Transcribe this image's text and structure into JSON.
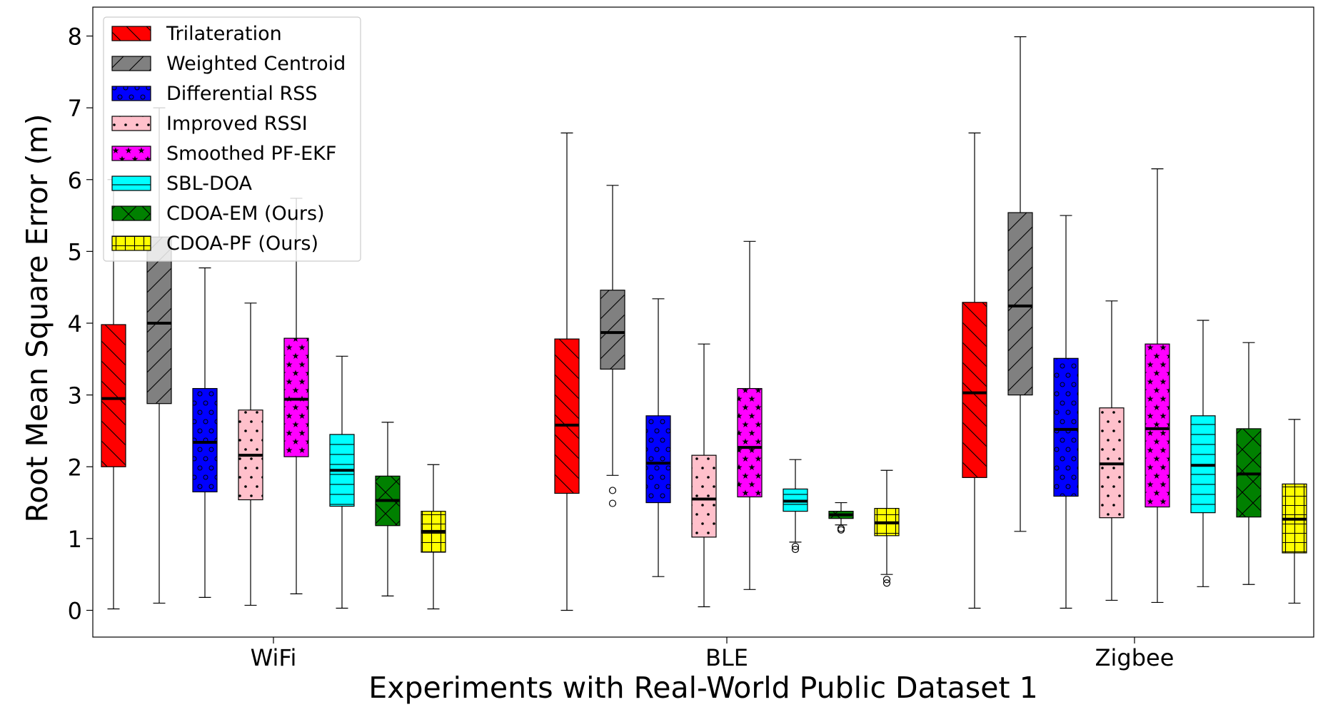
{
  "chart_data": {
    "type": "boxplot",
    "title": "",
    "xlabel": "Experiments with Real-World Public Dataset 1",
    "ylabel": "Root Mean Square Error (m)",
    "ylim": [
      -0.4,
      8.4
    ],
    "yticks": [
      0,
      1,
      2,
      3,
      4,
      5,
      6,
      7,
      8
    ],
    "grid": false,
    "legend_position": "top-left",
    "categories": [
      "WiFi",
      "BLE",
      "Zigbee"
    ],
    "series": [
      {
        "name": "Trilateration",
        "color": "#ff0000",
        "pattern": "backslash",
        "boxes": [
          {
            "whislo": 0.02,
            "q1": 2.0,
            "med": 2.95,
            "q3": 3.98,
            "whishi": 6.0,
            "fliers": []
          },
          {
            "whislo": 0.0,
            "q1": 1.63,
            "med": 2.58,
            "q3": 3.78,
            "whishi": 6.65,
            "fliers": []
          },
          {
            "whislo": 0.03,
            "q1": 1.85,
            "med": 3.03,
            "q3": 4.29,
            "whishi": 6.65,
            "fliers": []
          }
        ]
      },
      {
        "name": "Weighted Centroid",
        "color": "#808080",
        "pattern": "slash",
        "boxes": [
          {
            "whislo": 0.1,
            "q1": 2.88,
            "med": 4.0,
            "q3": 5.2,
            "whishi": 7.0,
            "fliers": []
          },
          {
            "whislo": 1.88,
            "q1": 3.36,
            "med": 3.87,
            "q3": 4.46,
            "whishi": 5.92,
            "fliers": [
              1.67,
              1.49
            ]
          },
          {
            "whislo": 1.1,
            "q1": 3.0,
            "med": 4.24,
            "q3": 5.54,
            "whishi": 7.99,
            "fliers": []
          }
        ]
      },
      {
        "name": "Differential RSS",
        "color": "#0000ff",
        "pattern": "circles",
        "boxes": [
          {
            "whislo": 0.18,
            "q1": 1.65,
            "med": 2.34,
            "q3": 3.09,
            "whishi": 4.77,
            "fliers": []
          },
          {
            "whislo": 0.47,
            "q1": 1.5,
            "med": 2.05,
            "q3": 2.71,
            "whishi": 4.34,
            "fliers": []
          },
          {
            "whislo": 0.03,
            "q1": 1.59,
            "med": 2.52,
            "q3": 3.51,
            "whishi": 5.5,
            "fliers": []
          }
        ]
      },
      {
        "name": "Improved RSSI",
        "color": "#ffc0cb",
        "pattern": "dots",
        "boxes": [
          {
            "whislo": 0.07,
            "q1": 1.54,
            "med": 2.16,
            "q3": 2.79,
            "whishi": 4.28,
            "fliers": []
          },
          {
            "whislo": 0.05,
            "q1": 1.02,
            "med": 1.55,
            "q3": 2.16,
            "whishi": 3.71,
            "fliers": []
          },
          {
            "whislo": 0.14,
            "q1": 1.29,
            "med": 2.04,
            "q3": 2.82,
            "whishi": 4.31,
            "fliers": []
          }
        ]
      },
      {
        "name": "Smoothed PF-EKF",
        "color": "#ff00ff",
        "pattern": "stars",
        "boxes": [
          {
            "whislo": 0.23,
            "q1": 2.14,
            "med": 2.94,
            "q3": 3.79,
            "whishi": 5.74,
            "fliers": []
          },
          {
            "whislo": 0.29,
            "q1": 1.58,
            "med": 2.27,
            "q3": 3.09,
            "whishi": 5.14,
            "fliers": []
          },
          {
            "whislo": 0.11,
            "q1": 1.44,
            "med": 2.53,
            "q3": 3.71,
            "whishi": 6.15,
            "fliers": []
          }
        ]
      },
      {
        "name": "SBL-DOA",
        "color": "#00ffff",
        "pattern": "hlines",
        "boxes": [
          {
            "whislo": 0.03,
            "q1": 1.45,
            "med": 1.95,
            "q3": 2.45,
            "whishi": 3.54,
            "fliers": []
          },
          {
            "whislo": 0.95,
            "q1": 1.38,
            "med": 1.52,
            "q3": 1.69,
            "whishi": 2.1,
            "fliers": [
              0.89,
              0.85
            ]
          },
          {
            "whislo": 0.33,
            "q1": 1.36,
            "med": 2.02,
            "q3": 2.71,
            "whishi": 4.04,
            "fliers": []
          }
        ]
      },
      {
        "name": "CDOA-EM (Ours)",
        "color": "#008000",
        "pattern": "crossdiag",
        "boxes": [
          {
            "whislo": 0.2,
            "q1": 1.18,
            "med": 1.53,
            "q3": 1.87,
            "whishi": 2.62,
            "fliers": []
          },
          {
            "whislo": 1.19,
            "q1": 1.28,
            "med": 1.33,
            "q3": 1.38,
            "whishi": 1.5,
            "fliers": [
              1.14,
              1.12
            ]
          },
          {
            "whislo": 0.36,
            "q1": 1.3,
            "med": 1.9,
            "q3": 2.53,
            "whishi": 3.73,
            "fliers": []
          }
        ]
      },
      {
        "name": "CDOA-PF (Ours)",
        "color": "#ffff00",
        "pattern": "grid",
        "boxes": [
          {
            "whislo": 0.02,
            "q1": 0.81,
            "med": 1.1,
            "q3": 1.38,
            "whishi": 2.03,
            "fliers": []
          },
          {
            "whislo": 0.5,
            "q1": 1.04,
            "med": 1.22,
            "q3": 1.42,
            "whishi": 1.95,
            "fliers": [
              0.43,
              0.38
            ]
          },
          {
            "whislo": 0.1,
            "q1": 0.8,
            "med": 1.27,
            "q3": 1.76,
            "whishi": 2.66,
            "fliers": []
          }
        ]
      }
    ]
  }
}
